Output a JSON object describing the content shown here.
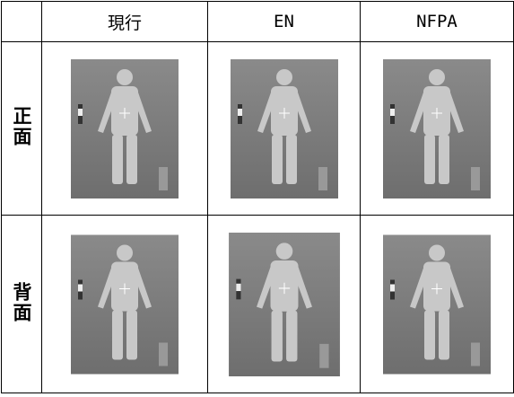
{
  "table": {
    "columns": [
      "現行",
      "EN",
      "NFPA"
    ],
    "rows": [
      {
        "label": "正面"
      },
      {
        "label": "背面"
      }
    ]
  }
}
